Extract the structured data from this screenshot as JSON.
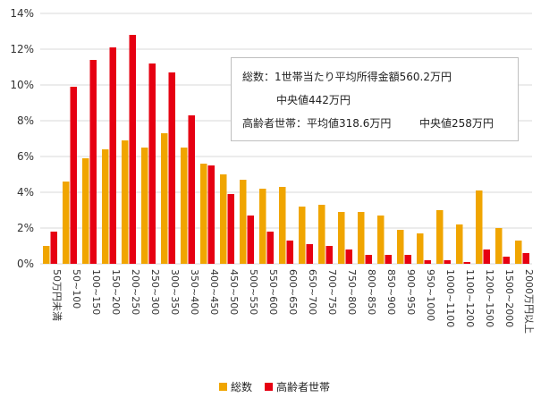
{
  "colors": {
    "total": "#f0a500",
    "elderly": "#e60012",
    "grid": "#d9d9d9"
  },
  "info": {
    "line1": "総数：1世帯当たり平均所得金額560.2万円",
    "line2": "中央値442万円",
    "line3_a": "高齢者世帯：平均値318.6万円",
    "line3_b": "中央値258万円"
  },
  "chart_data": {
    "type": "bar",
    "y_tick_labels": [
      "0%",
      "2%",
      "4%",
      "6%",
      "8%",
      "10%",
      "12%",
      "14%"
    ],
    "ylim": [
      0,
      14
    ],
    "categories": [
      "50万円未満",
      "50~100",
      "100~150",
      "150~200",
      "200~250",
      "250~300",
      "300~350",
      "350~400",
      "400~450",
      "450~500",
      "500~550",
      "550~600",
      "600~650",
      "650~700",
      "700~750",
      "750~800",
      "800~850",
      "850~900",
      "900~950",
      "950~1000",
      "1000~1100",
      "1100~1200",
      "1200~1500",
      "1500~2000",
      "2000万円以上"
    ],
    "series": [
      {
        "name": "総数",
        "values": [
          1.0,
          4.6,
          5.9,
          6.4,
          6.9,
          6.5,
          7.3,
          6.5,
          5.6,
          5.0,
          4.7,
          4.2,
          4.3,
          3.2,
          3.3,
          2.9,
          2.9,
          2.7,
          1.9,
          1.7,
          3.0,
          2.2,
          4.1,
          2.0,
          1.3
        ]
      },
      {
        "name": "高齢者世帯",
        "values": [
          1.8,
          9.9,
          11.4,
          12.1,
          12.8,
          11.2,
          10.7,
          8.3,
          5.5,
          3.9,
          2.7,
          1.8,
          1.3,
          1.1,
          1.0,
          0.8,
          0.5,
          0.5,
          0.5,
          0.2,
          0.2,
          0.1,
          0.8,
          0.4,
          0.6
        ]
      }
    ],
    "legend_position": "bottom",
    "grid": true
  }
}
